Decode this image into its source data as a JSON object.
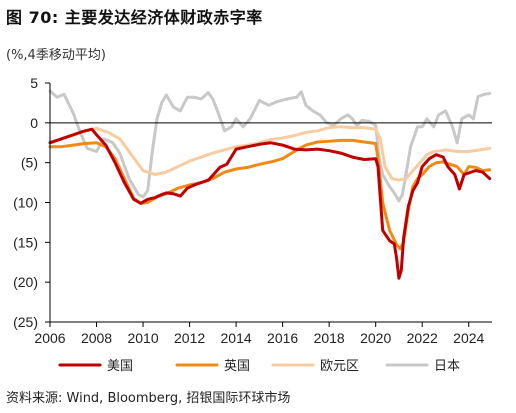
{
  "title": "图 70: 主要发达经济体财政赤字率",
  "unit": "(%,4季移动平均)",
  "source": "资料来源: Wind, Bloomberg, 招银国际环球市场",
  "chart_data": {
    "type": "line",
    "ylim": [
      -25,
      5
    ],
    "xlim": [
      2006,
      2025
    ],
    "yticks": [
      5,
      0,
      -5,
      -10,
      -15,
      -20,
      -25
    ],
    "ytick_labels": [
      "5",
      "0",
      "(5)",
      "(10)",
      "(15)",
      "(20)",
      "(25)"
    ],
    "xticks": [
      2006,
      2008,
      2010,
      2012,
      2014,
      2016,
      2018,
      2020,
      2022,
      2024
    ],
    "xtick_labels": [
      "2006",
      "2008",
      "2010",
      "2012",
      "2014",
      "2016",
      "2018",
      "2020",
      "2022",
      "2024"
    ],
    "grid": false,
    "legend_position": "bottom",
    "series": [
      {
        "name": "日本",
        "color": "#c8c8c8",
        "points": [
          [
            2006.0,
            4.0
          ],
          [
            2006.3,
            3.2
          ],
          [
            2006.6,
            3.6
          ],
          [
            2007.0,
            1.2
          ],
          [
            2007.3,
            -1.2
          ],
          [
            2007.6,
            -3.2
          ],
          [
            2008.0,
            -3.6
          ],
          [
            2008.3,
            -2.0
          ],
          [
            2008.7,
            -2.5
          ],
          [
            2009.0,
            -3.8
          ],
          [
            2009.4,
            -7.0
          ],
          [
            2009.8,
            -9.0
          ],
          [
            2010.0,
            -9.3
          ],
          [
            2010.2,
            -8.5
          ],
          [
            2010.4,
            -3.5
          ],
          [
            2010.6,
            0.5
          ],
          [
            2010.8,
            2.5
          ],
          [
            2011.0,
            3.5
          ],
          [
            2011.3,
            2.0
          ],
          [
            2011.6,
            1.5
          ],
          [
            2011.9,
            3.2
          ],
          [
            2012.2,
            3.2
          ],
          [
            2012.5,
            3.0
          ],
          [
            2012.8,
            3.8
          ],
          [
            2013.0,
            3.0
          ],
          [
            2013.2,
            1.5
          ],
          [
            2013.5,
            -1.0
          ],
          [
            2013.8,
            -0.5
          ],
          [
            2014.0,
            0.5
          ],
          [
            2014.3,
            -0.5
          ],
          [
            2014.6,
            0.5
          ],
          [
            2015.0,
            2.8
          ],
          [
            2015.4,
            2.2
          ],
          [
            2015.8,
            2.7
          ],
          [
            2016.2,
            3.0
          ],
          [
            2016.6,
            3.2
          ],
          [
            2016.8,
            3.9
          ],
          [
            2017.0,
            2.2
          ],
          [
            2017.3,
            1.5
          ],
          [
            2017.6,
            1.0
          ],
          [
            2017.9,
            0.0
          ],
          [
            2018.2,
            -0.3
          ],
          [
            2018.5,
            0.5
          ],
          [
            2018.8,
            1.0
          ],
          [
            2019.0,
            0.5
          ],
          [
            2019.2,
            -0.4
          ],
          [
            2019.4,
            0.3
          ],
          [
            2019.7,
            0.2
          ],
          [
            2020.0,
            -0.3
          ],
          [
            2020.15,
            -4.5
          ],
          [
            2020.3,
            -6.5
          ],
          [
            2020.6,
            -8.0
          ],
          [
            2020.8,
            -8.8
          ],
          [
            2021.0,
            -9.8
          ],
          [
            2021.15,
            -9.0
          ],
          [
            2021.3,
            -6.5
          ],
          [
            2021.5,
            -3.0
          ],
          [
            2021.8,
            -0.5
          ],
          [
            2022.0,
            -0.5
          ],
          [
            2022.2,
            0.5
          ],
          [
            2022.5,
            -0.5
          ],
          [
            2022.7,
            1.0
          ],
          [
            2023.0,
            1.5
          ],
          [
            2023.3,
            -0.5
          ],
          [
            2023.5,
            -2.5
          ],
          [
            2023.7,
            0.5
          ],
          [
            2024.0,
            1.0
          ],
          [
            2024.2,
            0.5
          ],
          [
            2024.4,
            3.3
          ],
          [
            2024.7,
            3.6
          ],
          [
            2024.9,
            3.7
          ]
        ]
      },
      {
        "name": "欧元区",
        "color": "#f8cba0",
        "points": [
          [
            2006.0,
            -2.4
          ],
          [
            2006.5,
            -2.0
          ],
          [
            2007.0,
            -1.5
          ],
          [
            2007.5,
            -1.0
          ],
          [
            2008.0,
            -0.7
          ],
          [
            2008.5,
            -1.2
          ],
          [
            2009.0,
            -2.0
          ],
          [
            2009.5,
            -4.0
          ],
          [
            2010.0,
            -6.0
          ],
          [
            2010.5,
            -6.5
          ],
          [
            2011.0,
            -6.2
          ],
          [
            2011.5,
            -5.5
          ],
          [
            2012.0,
            -4.8
          ],
          [
            2012.5,
            -4.3
          ],
          [
            2013.0,
            -3.8
          ],
          [
            2013.5,
            -3.4
          ],
          [
            2014.0,
            -3.0
          ],
          [
            2014.5,
            -2.8
          ],
          [
            2015.0,
            -2.5
          ],
          [
            2015.5,
            -2.1
          ],
          [
            2016.0,
            -1.9
          ],
          [
            2016.5,
            -1.6
          ],
          [
            2017.0,
            -1.2
          ],
          [
            2017.5,
            -1.0
          ],
          [
            2018.0,
            -0.6
          ],
          [
            2018.5,
            -0.5
          ],
          [
            2019.0,
            -0.6
          ],
          [
            2019.5,
            -0.6
          ],
          [
            2020.0,
            -0.8
          ],
          [
            2020.2,
            -2.0
          ],
          [
            2020.4,
            -5.5
          ],
          [
            2020.7,
            -7.0
          ],
          [
            2021.0,
            -7.2
          ],
          [
            2021.3,
            -7.0
          ],
          [
            2021.6,
            -6.0
          ],
          [
            2021.9,
            -5.0
          ],
          [
            2022.2,
            -4.0
          ],
          [
            2022.5,
            -3.6
          ],
          [
            2022.8,
            -3.5
          ],
          [
            2023.0,
            -3.4
          ],
          [
            2023.5,
            -3.6
          ],
          [
            2024.0,
            -3.6
          ],
          [
            2024.5,
            -3.4
          ],
          [
            2024.9,
            -3.2
          ]
        ]
      },
      {
        "name": "英国",
        "color": "#ef8a16",
        "points": [
          [
            2006.0,
            -3.0
          ],
          [
            2006.5,
            -3.0
          ],
          [
            2007.0,
            -2.8
          ],
          [
            2007.5,
            -2.6
          ],
          [
            2008.0,
            -2.5
          ],
          [
            2008.4,
            -3.0
          ],
          [
            2008.8,
            -4.5
          ],
          [
            2009.2,
            -7.0
          ],
          [
            2009.6,
            -9.5
          ],
          [
            2009.9,
            -10.1
          ],
          [
            2010.2,
            -10.0
          ],
          [
            2010.6,
            -9.3
          ],
          [
            2011.0,
            -8.9
          ],
          [
            2011.5,
            -8.2
          ],
          [
            2012.0,
            -7.8
          ],
          [
            2012.5,
            -7.5
          ],
          [
            2013.0,
            -7.0
          ],
          [
            2013.5,
            -6.2
          ],
          [
            2014.0,
            -5.8
          ],
          [
            2014.5,
            -5.6
          ],
          [
            2015.0,
            -5.2
          ],
          [
            2015.5,
            -4.9
          ],
          [
            2016.0,
            -4.5
          ],
          [
            2016.5,
            -3.6
          ],
          [
            2017.0,
            -2.8
          ],
          [
            2017.5,
            -2.4
          ],
          [
            2018.0,
            -2.3
          ],
          [
            2018.5,
            -2.2
          ],
          [
            2019.0,
            -2.2
          ],
          [
            2019.5,
            -2.4
          ],
          [
            2020.0,
            -2.6
          ],
          [
            2020.1,
            -4.5
          ],
          [
            2020.3,
            -10.0
          ],
          [
            2020.6,
            -13.5
          ],
          [
            2020.9,
            -15.3
          ],
          [
            2021.05,
            -15.8
          ],
          [
            2021.2,
            -15.0
          ],
          [
            2021.4,
            -11.0
          ],
          [
            2021.6,
            -8.0
          ],
          [
            2021.8,
            -7.0
          ],
          [
            2022.0,
            -6.5
          ],
          [
            2022.3,
            -5.5
          ],
          [
            2022.6,
            -5.0
          ],
          [
            2022.9,
            -4.9
          ],
          [
            2023.2,
            -5.2
          ],
          [
            2023.5,
            -5.5
          ],
          [
            2023.8,
            -6.5
          ],
          [
            2024.0,
            -5.5
          ],
          [
            2024.3,
            -5.6
          ],
          [
            2024.6,
            -6.0
          ],
          [
            2024.9,
            -5.9
          ]
        ]
      },
      {
        "name": "美国",
        "color": "#c00000",
        "points": [
          [
            2006.0,
            -2.5
          ],
          [
            2006.5,
            -2.0
          ],
          [
            2007.0,
            -1.5
          ],
          [
            2007.4,
            -1.1
          ],
          [
            2007.8,
            -0.8
          ],
          [
            2008.0,
            -1.5
          ],
          [
            2008.4,
            -2.8
          ],
          [
            2008.8,
            -5.0
          ],
          [
            2009.2,
            -7.5
          ],
          [
            2009.6,
            -9.6
          ],
          [
            2009.9,
            -10.1
          ],
          [
            2010.2,
            -9.6
          ],
          [
            2010.5,
            -9.4
          ],
          [
            2010.8,
            -9.0
          ],
          [
            2011.0,
            -8.8
          ],
          [
            2011.3,
            -8.9
          ],
          [
            2011.6,
            -9.2
          ],
          [
            2011.9,
            -8.2
          ],
          [
            2012.2,
            -7.8
          ],
          [
            2012.5,
            -7.5
          ],
          [
            2012.8,
            -7.2
          ],
          [
            2013.0,
            -6.6
          ],
          [
            2013.3,
            -5.6
          ],
          [
            2013.6,
            -5.2
          ],
          [
            2014.0,
            -3.3
          ],
          [
            2014.5,
            -3.0
          ],
          [
            2015.0,
            -2.7
          ],
          [
            2015.5,
            -2.5
          ],
          [
            2016.0,
            -2.8
          ],
          [
            2016.5,
            -3.3
          ],
          [
            2017.0,
            -3.4
          ],
          [
            2017.5,
            -3.3
          ],
          [
            2018.0,
            -3.5
          ],
          [
            2018.5,
            -3.8
          ],
          [
            2019.0,
            -4.3
          ],
          [
            2019.5,
            -4.6
          ],
          [
            2020.0,
            -4.5
          ],
          [
            2020.1,
            -5.5
          ],
          [
            2020.3,
            -13.5
          ],
          [
            2020.6,
            -14.8
          ],
          [
            2020.8,
            -15.2
          ],
          [
            2020.9,
            -17.0
          ],
          [
            2021.0,
            -19.5
          ],
          [
            2021.1,
            -18.5
          ],
          [
            2021.2,
            -14.5
          ],
          [
            2021.4,
            -10.5
          ],
          [
            2021.6,
            -8.5
          ],
          [
            2021.8,
            -7.5
          ],
          [
            2022.0,
            -5.5
          ],
          [
            2022.3,
            -4.5
          ],
          [
            2022.6,
            -4.0
          ],
          [
            2022.9,
            -4.3
          ],
          [
            2023.1,
            -5.5
          ],
          [
            2023.4,
            -6.5
          ],
          [
            2023.6,
            -8.3
          ],
          [
            2023.8,
            -6.5
          ],
          [
            2024.0,
            -6.3
          ],
          [
            2024.3,
            -6.0
          ],
          [
            2024.6,
            -6.2
          ],
          [
            2024.9,
            -7.0
          ]
        ]
      }
    ],
    "legend": [
      {
        "name": "美国",
        "color": "#c00000"
      },
      {
        "name": "英国",
        "color": "#ef8a16"
      },
      {
        "name": "欧元区",
        "color": "#f8cba0"
      },
      {
        "name": "日本",
        "color": "#c8c8c8"
      }
    ]
  }
}
